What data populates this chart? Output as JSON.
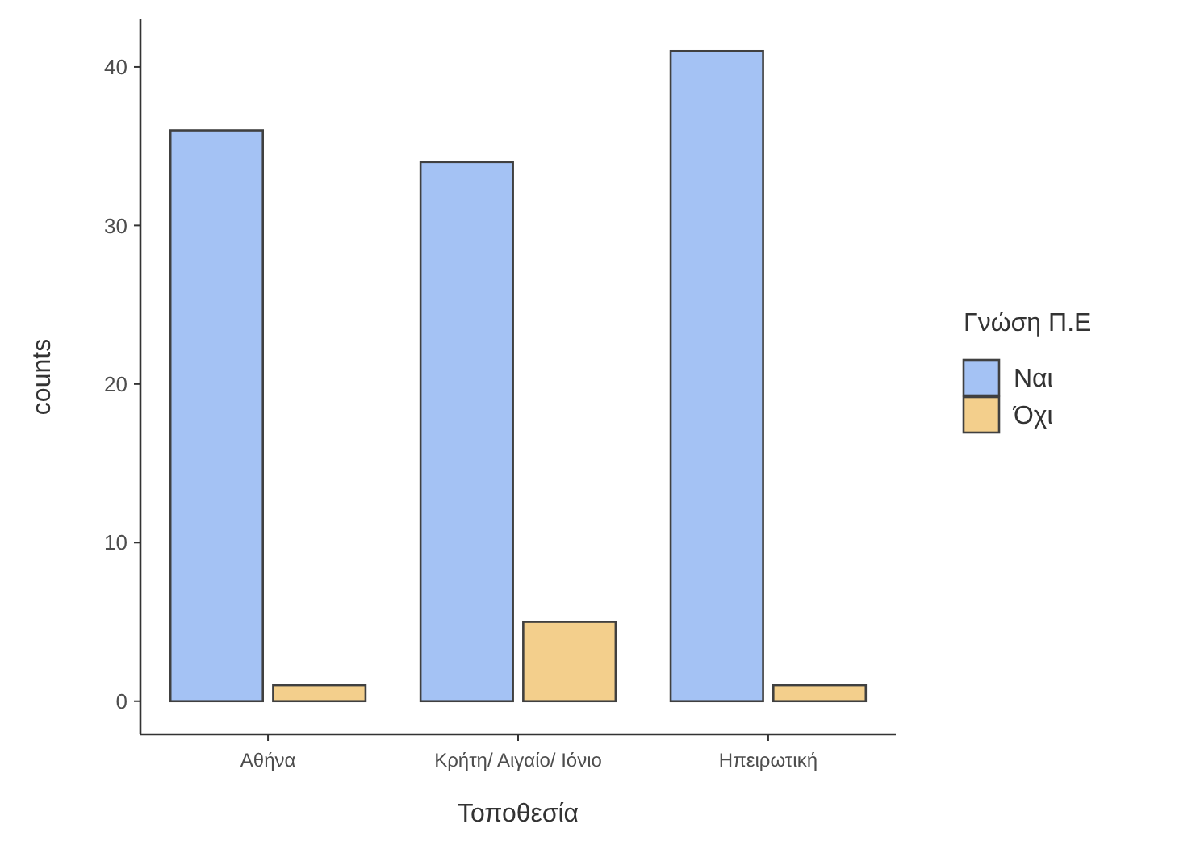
{
  "chart_data": {
    "type": "bar",
    "xlabel": "Τοποθεσία",
    "ylabel": "counts",
    "legend_title": "Γνώση Π.Ε",
    "legend": "right",
    "categories": [
      "Αθήνα",
      "Κρήτη/ Αιγαίο/ Ιόνιο",
      "Ηπειρωτική"
    ],
    "series": [
      {
        "name": "Ναι",
        "color": "#a4c2f4",
        "values": [
          36,
          34,
          41
        ]
      },
      {
        "name": "Όχι",
        "color": "#f3cf8c",
        "values": [
          1,
          5,
          1
        ]
      }
    ],
    "ylim": [
      -2.1,
      43
    ],
    "yticks": [
      0,
      10,
      20,
      30,
      40
    ],
    "grid": false
  }
}
